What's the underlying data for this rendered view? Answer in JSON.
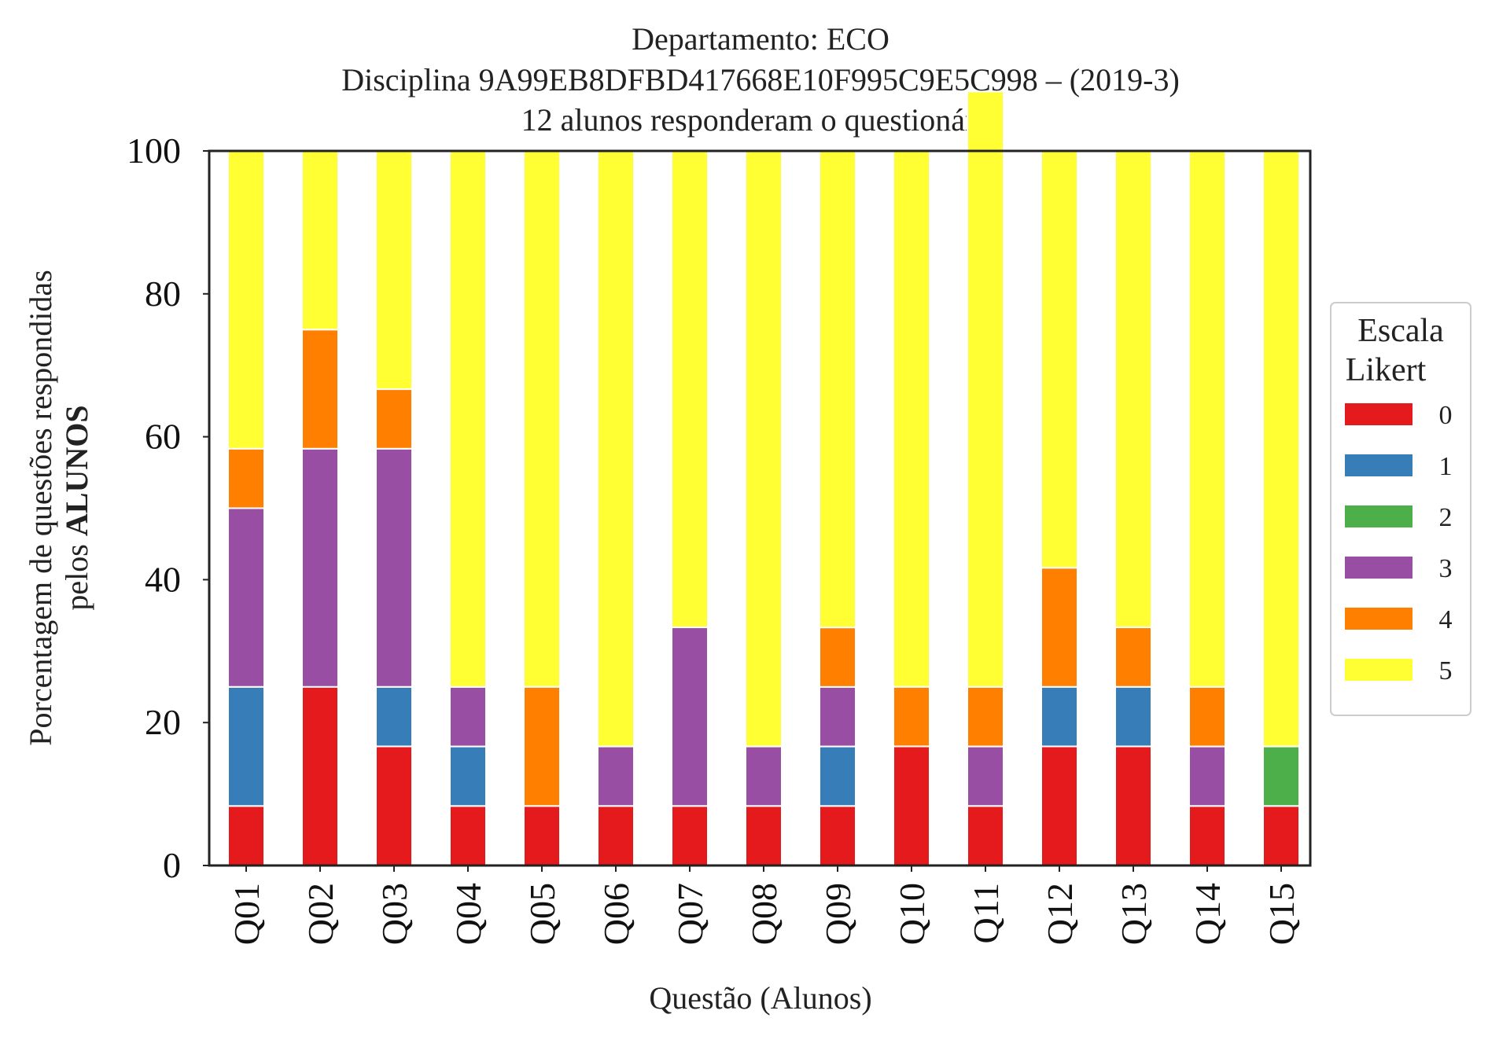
{
  "chart_data": {
    "type": "bar",
    "stacked": true,
    "title_lines": [
      "Departamento: ECO",
      "Disciplina 9A99EB8DFBD417668E10F995C9E5C998 – (2019-3)",
      "12 alunos responderam o questionário"
    ],
    "xlabel": "Questão (Alunos)",
    "ylabel_line1": "Porcentagem de questões respondidas",
    "ylabel_line2_prefix": "pelos ",
    "ylabel_line2_bold": "ALUNOS",
    "ylim": [
      0,
      100
    ],
    "yticks": [
      "0",
      "20",
      "40",
      "60",
      "80",
      "100"
    ],
    "grid": false,
    "legend": {
      "title_line1": "Escala",
      "title_line2": "Likert",
      "position": "right"
    },
    "categories": [
      "Q01",
      "Q02",
      "Q03",
      "Q04",
      "Q05",
      "Q06",
      "Q07",
      "Q08",
      "Q09",
      "Q10",
      "Q11",
      "Q12",
      "Q13",
      "Q14",
      "Q15"
    ],
    "series": [
      {
        "name": "0",
        "color": "#e41a1c",
        "values": [
          8.33,
          25,
          16.67,
          8.33,
          8.33,
          8.33,
          8.33,
          8.33,
          8.33,
          16.67,
          8.33,
          16.67,
          16.67,
          8.33,
          8.33
        ]
      },
      {
        "name": "1",
        "color": "#377eb8",
        "values": [
          16.67,
          0,
          8.33,
          8.33,
          0,
          0,
          0,
          0,
          8.33,
          0,
          0,
          8.33,
          8.33,
          0,
          0
        ]
      },
      {
        "name": "2",
        "color": "#4daf4a",
        "values": [
          0,
          0,
          0,
          0,
          0,
          0,
          0,
          0,
          0,
          0,
          0,
          0,
          0,
          0,
          8.33
        ]
      },
      {
        "name": "3",
        "color": "#984ea3",
        "values": [
          25,
          33.33,
          33.33,
          8.33,
          0,
          8.33,
          25,
          8.33,
          8.33,
          0,
          8.33,
          0,
          0,
          8.33,
          0
        ]
      },
      {
        "name": "4",
        "color": "#ff7f00",
        "values": [
          8.33,
          16.67,
          8.33,
          0,
          16.67,
          0,
          0,
          0,
          8.33,
          8.33,
          8.33,
          16.67,
          8.33,
          8.33,
          0
        ]
      },
      {
        "name": "5",
        "color": "#ffff33",
        "values": [
          41.67,
          25,
          33.33,
          75,
          75,
          83.33,
          66.67,
          83.33,
          66.67,
          75,
          83.33,
          58.33,
          66.67,
          75,
          83.33
        ]
      }
    ]
  }
}
